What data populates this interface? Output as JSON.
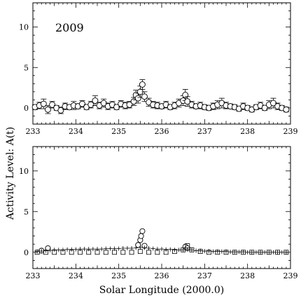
{
  "chart_data": [
    {
      "type": "scatter",
      "title": "2009",
      "xlabel": "",
      "ylabel": "",
      "xlim": [
        233,
        239
      ],
      "ylim": [
        -2,
        13
      ],
      "xticks": [
        "233",
        "234",
        "235",
        "236",
        "237",
        "238",
        "239"
      ],
      "yticks": [
        "0",
        "5",
        "10"
      ],
      "grid": false,
      "series": [
        {
          "marker": "circle-with-errorbars",
          "x": [
            233.05,
            233.15,
            233.25,
            233.35,
            233.45,
            233.55,
            233.65,
            233.75,
            233.85,
            233.95,
            234.05,
            234.15,
            234.25,
            234.35,
            234.45,
            234.55,
            234.65,
            234.75,
            234.85,
            234.95,
            235.05,
            235.15,
            235.25,
            235.35,
            235.4,
            235.45,
            235.5,
            235.55,
            235.6,
            235.7,
            235.8,
            235.9,
            236.0,
            236.1,
            236.2,
            236.3,
            236.4,
            236.5,
            236.55,
            236.6,
            236.7,
            236.8,
            236.9,
            237.0,
            237.1,
            237.2,
            237.3,
            237.4,
            237.5,
            237.6,
            237.7,
            237.8,
            237.9,
            238.0,
            238.1,
            238.2,
            238.3,
            238.4,
            238.5,
            238.6,
            238.7,
            238.8,
            238.9
          ],
          "y": [
            0.1,
            0.3,
            0.5,
            -0.2,
            0.4,
            0.0,
            -0.3,
            0.2,
            0.1,
            0.3,
            0.2,
            0.5,
            0.1,
            0.4,
            0.9,
            0.3,
            0.6,
            0.2,
            0.4,
            0.1,
            0.5,
            0.3,
            0.4,
            0.8,
            1.6,
            1.2,
            2.0,
            2.9,
            1.4,
            0.7,
            0.4,
            0.3,
            0.2,
            0.4,
            0.1,
            0.3,
            0.6,
            0.9,
            1.6,
            0.8,
            0.4,
            0.2,
            0.3,
            0.1,
            0.0,
            0.2,
            0.4,
            0.6,
            0.3,
            0.2,
            0.1,
            -0.1,
            0.2,
            0.0,
            -0.2,
            0.1,
            0.3,
            0.0,
            0.4,
            0.6,
            0.2,
            0.0,
            -0.2
          ],
          "err": [
            0.3,
            0.4,
            0.6,
            0.5,
            0.4,
            0.3,
            0.4,
            0.4,
            0.3,
            0.5,
            0.3,
            0.4,
            0.3,
            0.4,
            0.6,
            0.4,
            0.5,
            0.4,
            0.4,
            0.3,
            0.4,
            0.4,
            0.4,
            0.5,
            0.6,
            0.6,
            0.7,
            0.6,
            0.6,
            0.5,
            0.4,
            0.4,
            0.3,
            0.4,
            0.3,
            0.4,
            0.5,
            0.6,
            0.7,
            0.6,
            0.4,
            0.3,
            0.4,
            0.3,
            0.3,
            0.4,
            0.5,
            0.6,
            0.4,
            0.3,
            0.3,
            0.3,
            0.4,
            0.3,
            0.3,
            0.3,
            0.4,
            0.3,
            0.5,
            0.6,
            0.4,
            0.3,
            0.3
          ]
        }
      ]
    },
    {
      "type": "scatter",
      "title": "",
      "xlabel": "Solar Longitude (2000.0)",
      "ylabel": "Activity Level: A(t)",
      "xlim": [
        233,
        239
      ],
      "ylim": [
        -2,
        13
      ],
      "xticks": [
        "233",
        "234",
        "235",
        "236",
        "237",
        "238",
        "239"
      ],
      "yticks": [
        "0",
        "5",
        "10"
      ],
      "grid": false,
      "series": [
        {
          "marker": "circle",
          "x": [
            233.2,
            233.35,
            235.45,
            235.5,
            235.52,
            235.55,
            235.6,
            236.55,
            236.6
          ],
          "y": [
            0.2,
            0.5,
            0.9,
            1.5,
            2.0,
            2.6,
            0.8,
            0.7,
            0.5
          ]
        },
        {
          "marker": "plus",
          "x": [
            233.1,
            233.2,
            233.3,
            233.4,
            233.5,
            233.6,
            233.7,
            233.8,
            233.9,
            234.0,
            234.1,
            234.2,
            234.3,
            234.4,
            234.5,
            234.6,
            234.7,
            234.8,
            234.9,
            235.0,
            235.1,
            235.2,
            235.3,
            235.4,
            235.5,
            235.6,
            235.7,
            235.8,
            235.9,
            236.0,
            236.1,
            236.2,
            236.3,
            236.4,
            236.5,
            236.6,
            236.7,
            236.8,
            236.9,
            237.0,
            237.1,
            237.2,
            237.3,
            237.4,
            237.5,
            237.6,
            237.7,
            237.8,
            237.9,
            238.0,
            238.1,
            238.2,
            238.3,
            238.4,
            238.5,
            238.6,
            238.7,
            238.8,
            238.9
          ],
          "y": [
            0.1,
            0.15,
            0.2,
            0.25,
            0.3,
            0.3,
            0.3,
            0.35,
            0.35,
            0.35,
            0.4,
            0.4,
            0.4,
            0.4,
            0.4,
            0.4,
            0.45,
            0.45,
            0.45,
            0.45,
            0.5,
            0.5,
            0.5,
            0.55,
            0.6,
            0.55,
            0.5,
            0.45,
            0.4,
            0.4,
            0.35,
            0.35,
            0.3,
            0.3,
            0.3,
            0.35,
            0.3,
            0.2,
            0.2,
            0.15,
            0.15,
            0.1,
            0.1,
            0.1,
            0.1,
            0.05,
            0.05,
            0.05,
            0.05,
            0.0,
            0.0,
            0.0,
            0.0,
            0.0,
            0.0,
            0.0,
            0.0,
            0.0,
            0.0
          ]
        },
        {
          "marker": "square",
          "x": [
            233.1,
            233.3,
            233.5,
            233.7,
            233.9,
            234.1,
            234.3,
            234.5,
            234.7,
            234.9,
            235.1,
            235.3,
            235.5,
            235.7,
            235.9,
            236.1,
            236.3,
            236.5,
            236.6,
            236.7,
            236.9,
            237.1,
            237.3,
            237.5,
            237.7,
            237.9,
            238.1,
            238.3,
            238.5,
            238.7,
            238.9
          ],
          "y": [
            0.0,
            0.0,
            0.0,
            0.0,
            0.0,
            0.0,
            0.0,
            0.0,
            0.0,
            0.0,
            0.0,
            0.0,
            0.1,
            0.0,
            0.0,
            0.0,
            0.1,
            0.3,
            0.8,
            0.3,
            0.1,
            0.0,
            0.0,
            0.0,
            0.0,
            0.0,
            0.0,
            0.0,
            0.0,
            0.0,
            0.0
          ]
        }
      ]
    }
  ]
}
